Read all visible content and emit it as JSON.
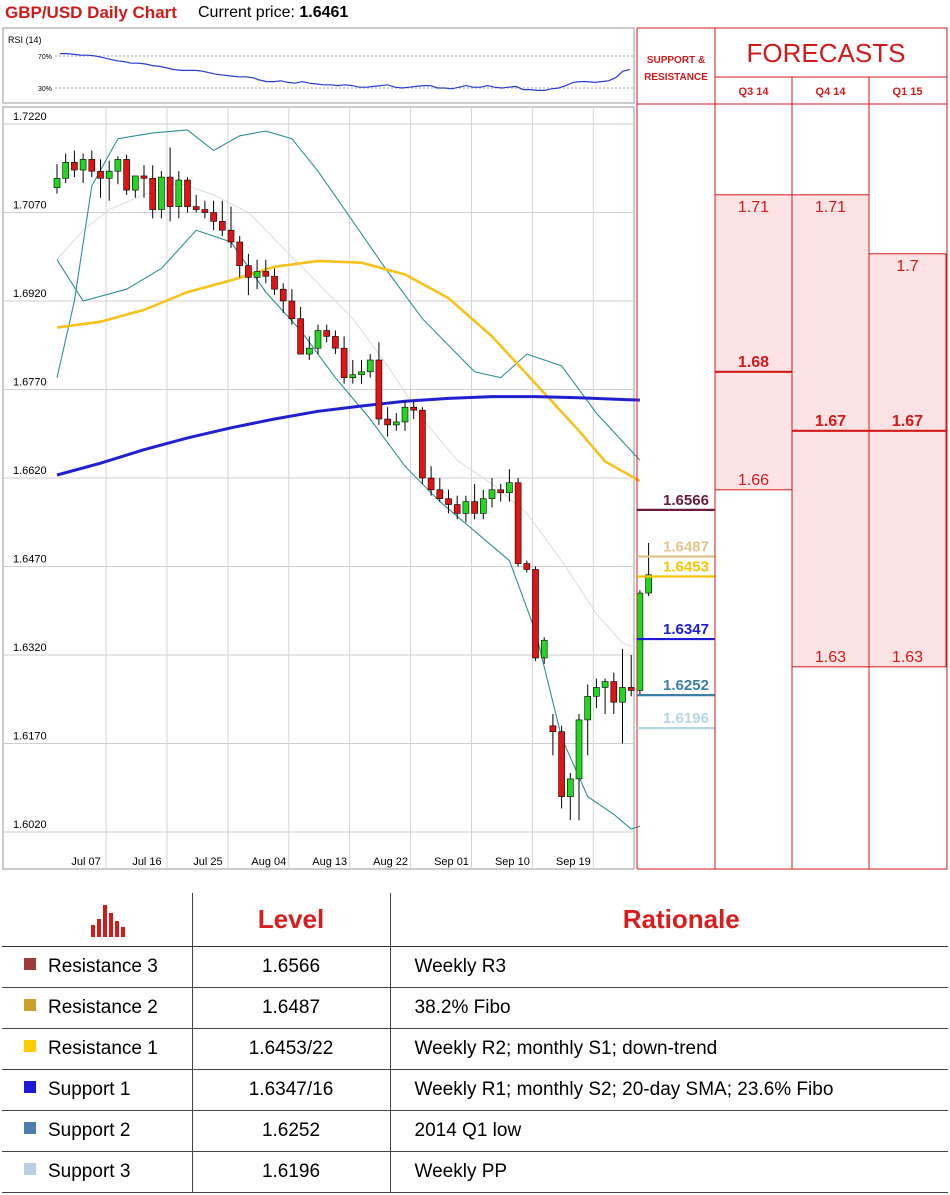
{
  "header": {
    "title": "GBP/USD Daily Chart",
    "price_label": "Current price:",
    "price_value": "1.6461"
  },
  "rsi": {
    "label": "RSI (14)",
    "level_labels": [
      "70%",
      "30%"
    ],
    "levels": [
      70,
      30
    ],
    "values": [
      73,
      73,
      72,
      71,
      71,
      70,
      68,
      66,
      64,
      63,
      61,
      61,
      60,
      58,
      57,
      55,
      53,
      52,
      52,
      52,
      51,
      49,
      47,
      46,
      45,
      44,
      44,
      43,
      40,
      38,
      38,
      39,
      37,
      36,
      38,
      36,
      35,
      34,
      34,
      33,
      34,
      33,
      31,
      31,
      32,
      33,
      34,
      31,
      30,
      31,
      32,
      33,
      33,
      30,
      30,
      29,
      31,
      33,
      31,
      31,
      33,
      31,
      30,
      31,
      32,
      28,
      28,
      27,
      27,
      29,
      30,
      33,
      37,
      38,
      38,
      37,
      38,
      39,
      43,
      51,
      53
    ]
  },
  "chart_data": {
    "type": "candlestick",
    "title": "GBP/USD Daily Chart",
    "ylim": [
      1.602,
      1.722
    ],
    "y_ticks": [
      "1.7220",
      "1.7070",
      "1.6920",
      "1.6770",
      "1.6620",
      "1.6470",
      "1.6320",
      "1.6170",
      "1.6020"
    ],
    "y_tick_values": [
      1.722,
      1.707,
      1.692,
      1.677,
      1.662,
      1.647,
      1.632,
      1.617,
      1.602
    ],
    "x_ticks": [
      "Jul 07",
      "Jul 16",
      "Jul 25",
      "Aug 04",
      "Aug 13",
      "Aug 22",
      "Sep 01",
      "Sep 10",
      "Sep 19"
    ],
    "x_tick_index": [
      3,
      10,
      17,
      24,
      31,
      38,
      45,
      52,
      59
    ],
    "candles": [
      [
        1.7112,
        1.7152,
        1.7102,
        1.7128
      ],
      [
        1.7128,
        1.717,
        1.712,
        1.7155
      ],
      [
        1.7155,
        1.7175,
        1.713,
        1.7142
      ],
      [
        1.7142,
        1.717,
        1.712,
        1.716
      ],
      [
        1.716,
        1.7175,
        1.713,
        1.714
      ],
      [
        1.714,
        1.716,
        1.7095,
        1.7128
      ],
      [
        1.7128,
        1.7158,
        1.709,
        1.714
      ],
      [
        1.714,
        1.7165,
        1.7118,
        1.716
      ],
      [
        1.716,
        1.7168,
        1.71,
        1.7108
      ],
      [
        1.7108,
        1.713,
        1.7095,
        1.7132
      ],
      [
        1.7132,
        1.715,
        1.7095,
        1.7128
      ],
      [
        1.7128,
        1.715,
        1.706,
        1.7075
      ],
      [
        1.7075,
        1.714,
        1.706,
        1.713
      ],
      [
        1.713,
        1.718,
        1.7055,
        1.708
      ],
      [
        1.708,
        1.714,
        1.706,
        1.7125
      ],
      [
        1.7125,
        1.713,
        1.707,
        1.708
      ],
      [
        1.708,
        1.71,
        1.707,
        1.7075
      ],
      [
        1.7075,
        1.709,
        1.706,
        1.707
      ],
      [
        1.707,
        1.709,
        1.704,
        1.7055
      ],
      [
        1.7055,
        1.709,
        1.703,
        1.704
      ],
      [
        1.704,
        1.708,
        1.701,
        1.702
      ],
      [
        1.702,
        1.703,
        1.696,
        1.698
      ],
      [
        1.698,
        1.7,
        1.693,
        1.696
      ],
      [
        1.696,
        1.699,
        1.694,
        1.697
      ],
      [
        1.697,
        1.699,
        1.695,
        1.6962
      ],
      [
        1.6962,
        1.6975,
        1.693,
        1.694
      ],
      [
        1.694,
        1.695,
        1.69,
        1.692
      ],
      [
        1.692,
        1.694,
        1.688,
        1.689
      ],
      [
        1.689,
        1.691,
        1.683,
        1.683
      ],
      [
        1.683,
        1.686,
        1.682,
        1.684
      ],
      [
        1.684,
        1.688,
        1.683,
        1.687
      ],
      [
        1.687,
        1.688,
        1.685,
        1.686
      ],
      [
        1.686,
        1.687,
        1.683,
        1.684
      ],
      [
        1.684,
        1.686,
        1.678,
        1.679
      ],
      [
        1.679,
        1.682,
        1.678,
        1.6795
      ],
      [
        1.6795,
        1.682,
        1.678,
        1.68
      ],
      [
        1.68,
        1.683,
        1.679,
        1.682
      ],
      [
        1.682,
        1.685,
        1.671,
        1.672
      ],
      [
        1.672,
        1.674,
        1.669,
        1.671
      ],
      [
        1.671,
        1.673,
        1.67,
        1.6715
      ],
      [
        1.6715,
        1.675,
        1.67,
        1.674
      ],
      [
        1.674,
        1.675,
        1.672,
        1.6735
      ],
      [
        1.6735,
        1.674,
        1.661,
        1.662
      ],
      [
        1.662,
        1.664,
        1.659,
        1.66
      ],
      [
        1.66,
        1.662,
        1.658,
        1.6585
      ],
      [
        1.6585,
        1.66,
        1.656,
        1.6575
      ],
      [
        1.6575,
        1.659,
        1.655,
        1.656
      ],
      [
        1.656,
        1.659,
        1.6545,
        1.658
      ],
      [
        1.658,
        1.661,
        1.655,
        1.656
      ],
      [
        1.656,
        1.66,
        1.655,
        1.6585
      ],
      [
        1.6585,
        1.662,
        1.657,
        1.66
      ],
      [
        1.66,
        1.661,
        1.658,
        1.6595
      ],
      [
        1.6595,
        1.6635,
        1.658,
        1.6612
      ],
      [
        1.6612,
        1.662,
        1.647,
        1.6475
      ],
      [
        1.6475,
        1.648,
        1.646,
        1.6465
      ],
      [
        1.6465,
        1.647,
        1.631,
        1.6315
      ],
      [
        1.6315,
        1.635,
        1.6305,
        1.6345
      ],
      [
        1.62,
        1.622,
        1.615,
        1.619
      ],
      [
        1.619,
        1.62,
        1.606,
        1.608
      ],
      [
        1.608,
        1.612,
        1.604,
        1.611
      ],
      [
        1.611,
        1.622,
        1.604,
        1.621
      ],
      [
        1.621,
        1.627,
        1.615,
        1.625
      ],
      [
        1.625,
        1.628,
        1.623,
        1.6265
      ],
      [
        1.6265,
        1.628,
        1.622,
        1.6275
      ],
      [
        1.6275,
        1.629,
        1.622,
        1.624
      ],
      [
        1.624,
        1.633,
        1.617,
        1.6265
      ],
      [
        1.6265,
        1.632,
        1.625,
        1.626
      ],
      [
        1.626,
        1.643,
        1.625,
        1.6425
      ],
      [
        1.6425,
        1.651,
        1.642,
        1.6456
      ]
    ],
    "sma_yellow": [
      [
        0,
        1.6875
      ],
      [
        5,
        1.6885
      ],
      [
        10,
        1.6905
      ],
      [
        15,
        1.6935
      ],
      [
        20,
        1.6955
      ],
      [
        25,
        1.6978
      ],
      [
        30,
        1.6988
      ],
      [
        35,
        1.6985
      ],
      [
        40,
        1.6965
      ],
      [
        45,
        1.6925
      ],
      [
        50,
        1.686
      ],
      [
        55,
        1.678
      ],
      [
        60,
        1.67
      ],
      [
        63,
        1.6648
      ],
      [
        67,
        1.6615
      ]
    ],
    "sma_blue": [
      [
        0,
        1.6625
      ],
      [
        5,
        1.6645
      ],
      [
        10,
        1.6668
      ],
      [
        15,
        1.6688
      ],
      [
        20,
        1.6705
      ],
      [
        25,
        1.672
      ],
      [
        30,
        1.6733
      ],
      [
        35,
        1.6742
      ],
      [
        40,
        1.675
      ],
      [
        45,
        1.6755
      ],
      [
        50,
        1.6758
      ],
      [
        55,
        1.6758
      ],
      [
        60,
        1.6756
      ],
      [
        65,
        1.6753
      ],
      [
        67,
        1.6752
      ]
    ],
    "band_upper": [
      [
        0,
        1.679
      ],
      [
        2,
        1.692
      ],
      [
        4,
        1.7115
      ],
      [
        7,
        1.7195
      ],
      [
        11,
        1.7205
      ],
      [
        15,
        1.721
      ],
      [
        18,
        1.7175
      ],
      [
        21,
        1.72
      ],
      [
        24,
        1.7208
      ],
      [
        27,
        1.7195
      ],
      [
        30,
        1.714
      ],
      [
        34,
        1.7055
      ],
      [
        38,
        1.697
      ],
      [
        42,
        1.689
      ],
      [
        46,
        1.683
      ],
      [
        48,
        1.68
      ],
      [
        51,
        1.679
      ],
      [
        54,
        1.683
      ],
      [
        58,
        1.681
      ],
      [
        62,
        1.673
      ],
      [
        67,
        1.665
      ]
    ],
    "band_lower": [
      [
        0,
        1.699
      ],
      [
        3,
        1.692
      ],
      [
        8,
        1.694
      ],
      [
        12,
        1.6975
      ],
      [
        16,
        1.704
      ],
      [
        20,
        1.702
      ],
      [
        24,
        1.6935
      ],
      [
        28,
        1.687
      ],
      [
        32,
        1.679
      ],
      [
        36,
        1.672
      ],
      [
        40,
        1.664
      ],
      [
        44,
        1.658
      ],
      [
        48,
        1.653
      ],
      [
        52,
        1.648
      ],
      [
        55,
        1.636
      ],
      [
        58,
        1.618
      ],
      [
        61,
        1.608
      ],
      [
        64,
        1.605
      ],
      [
        66,
        1.6025
      ],
      [
        67,
        1.603
      ]
    ],
    "band_mid": [
      [
        0,
        1.699
      ],
      [
        3,
        1.704
      ],
      [
        6,
        1.7075
      ],
      [
        10,
        1.71
      ],
      [
        14,
        1.712
      ],
      [
        18,
        1.71
      ],
      [
        22,
        1.707
      ],
      [
        26,
        1.701
      ],
      [
        30,
        1.695
      ],
      [
        34,
        1.689
      ],
      [
        38,
        1.681
      ],
      [
        42,
        1.672
      ],
      [
        46,
        1.665
      ],
      [
        50,
        1.661
      ],
      [
        54,
        1.656
      ],
      [
        58,
        1.648
      ],
      [
        62,
        1.639
      ],
      [
        65,
        1.634
      ],
      [
        67,
        1.633
      ]
    ],
    "levels": [
      {
        "value": 1.6566,
        "label": "1.6566",
        "color": "#6b1a3a"
      },
      {
        "value": 1.6487,
        "label": "1.6487",
        "color": "#e2c58c"
      },
      {
        "value": 1.6453,
        "label": "1.6453",
        "color": "#f5c400"
      },
      {
        "value": 1.6347,
        "label": "1.6347",
        "color": "#1a1ad8"
      },
      {
        "value": 1.6252,
        "label": "1.6252",
        "color": "#3d7ea8"
      },
      {
        "value": 1.6196,
        "label": "1.6196",
        "color": "#b5d6e3"
      }
    ]
  },
  "forecasts": {
    "title": "FORECASTS",
    "sr_header": "SUPPORT & RESISTANCE",
    "quarters": [
      "Q3 14",
      "Q4 14",
      "Q1 15"
    ],
    "columns": [
      {
        "high": 1.71,
        "high_label": "1.71",
        "mid": 1.68,
        "mid_label": "1.68",
        "low": 1.66,
        "low_label": "1.66"
      },
      {
        "high": 1.71,
        "high_label": "1.71",
        "mid": 1.67,
        "mid_label": "1.67",
        "low": 1.63,
        "low_label": "1.63"
      },
      {
        "high": 1.7,
        "high_label": "1.7",
        "mid": 1.67,
        "mid_label": "1.67",
        "low": 1.63,
        "low_label": "1.63"
      }
    ]
  },
  "table": {
    "col_level": "Level",
    "col_rationale": "Rationale",
    "rows": [
      {
        "name": "Resistance 3",
        "level": "1.6566",
        "rationale": "Weekly R3",
        "color": "#9b3b3b"
      },
      {
        "name": "Resistance 2",
        "level": "1.6487",
        "rationale": "38.2% Fibo",
        "color": "#c9a12a"
      },
      {
        "name": "Resistance 1",
        "level": "1.6453/22",
        "rationale": "Weekly R2; monthly S1; down-trend",
        "color": "#ffcc00"
      },
      {
        "name": "Support 1",
        "level": "1.6347/16",
        "rationale": "Weekly R1; monthly S2; 20-day SMA; 23.6% Fibo",
        "color": "#1a1ad8"
      },
      {
        "name": "Support 2",
        "level": "1.6252",
        "rationale": "2014 Q1 low",
        "color": "#4a7fb0"
      },
      {
        "name": "Support 3",
        "level": "1.6196",
        "rationale": "Weekly PP",
        "color": "#b9cfe8"
      }
    ]
  }
}
